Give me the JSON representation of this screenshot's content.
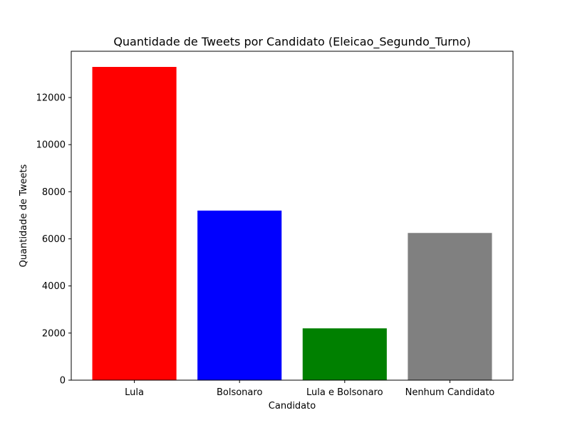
{
  "chart_data": {
    "type": "bar",
    "title": "Quantidade de Tweets por Candidato (Eleicao_Segundo_Turno)",
    "xlabel": "Candidato",
    "ylabel": "Quantidade de Tweets",
    "categories": [
      "Lula",
      "Bolsonaro",
      "Lula e Bolsonaro",
      "Nenhum Candidato"
    ],
    "values": [
      13300,
      7200,
      2200,
      6250
    ],
    "colors": [
      "#ff0000",
      "#0000ff",
      "#008000",
      "#808080"
    ],
    "ylim": [
      0,
      13965
    ],
    "yticks": [
      0,
      2000,
      4000,
      6000,
      8000,
      10000,
      12000
    ],
    "ytick_labels": [
      "0",
      "2000",
      "4000",
      "6000",
      "8000",
      "10000",
      "12000"
    ],
    "grid": false,
    "legend": null
  }
}
